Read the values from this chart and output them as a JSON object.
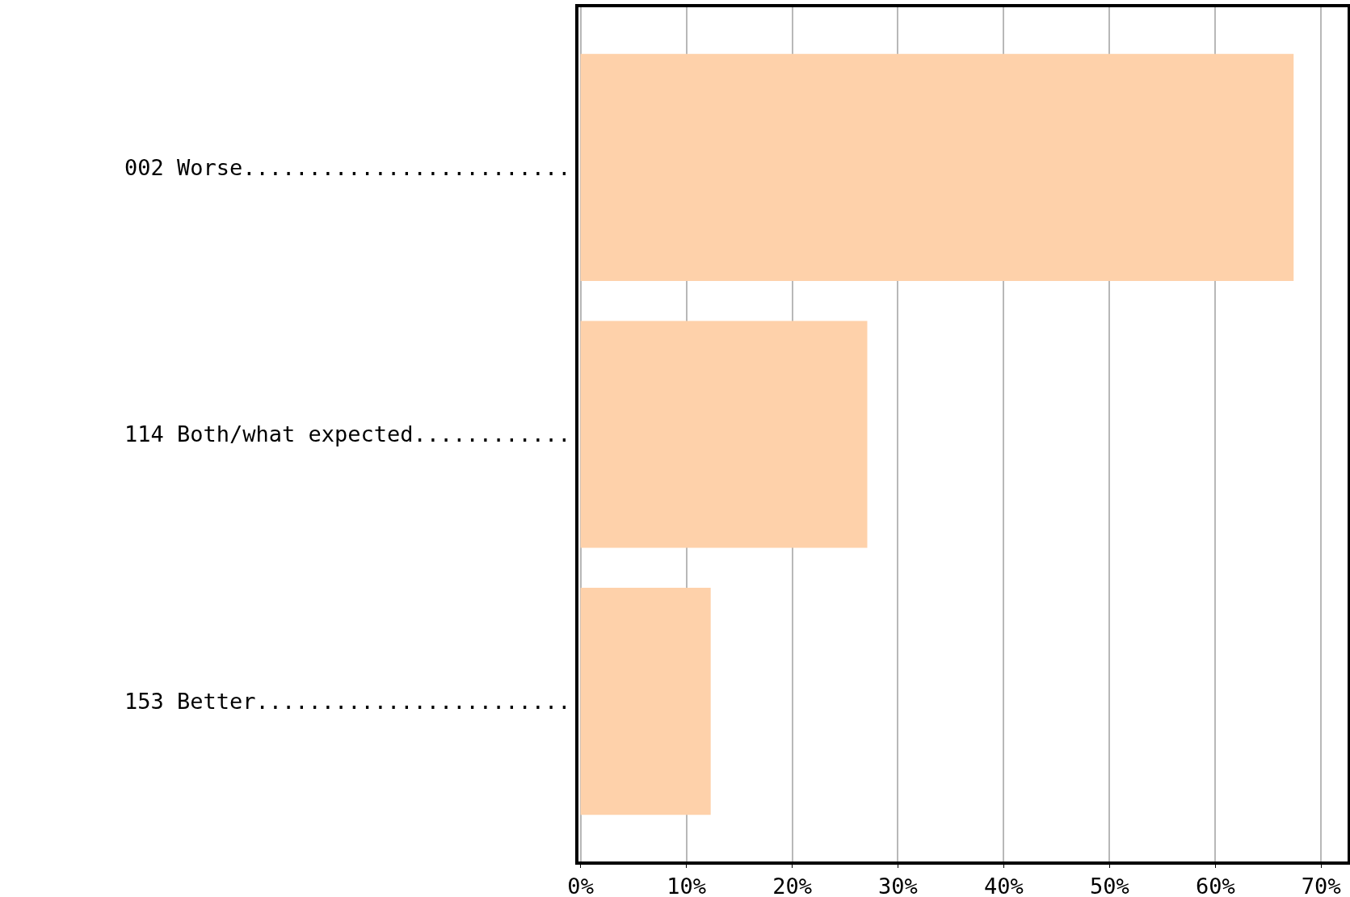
{
  "chart_data": {
    "type": "bar",
    "orientation": "horizontal",
    "categories": [
      "002 Worse.........................",
      "114 Both/what expected............",
      "153 Better........................"
    ],
    "values": [
      67.4,
      27.1,
      12.3
    ],
    "color": "#fed1aa",
    "xlim": [
      -0.2,
      72.5
    ],
    "xticks": [
      {
        "value": 0,
        "label": "0%"
      },
      {
        "value": 10,
        "label": "10%"
      },
      {
        "value": 20,
        "label": "20%"
      },
      {
        "value": 30,
        "label": "30%"
      },
      {
        "value": 40,
        "label": "40%"
      },
      {
        "value": 50,
        "label": "50%"
      },
      {
        "value": 60,
        "label": "60%"
      },
      {
        "value": 70,
        "label": "70%"
      }
    ],
    "grid": "x"
  }
}
